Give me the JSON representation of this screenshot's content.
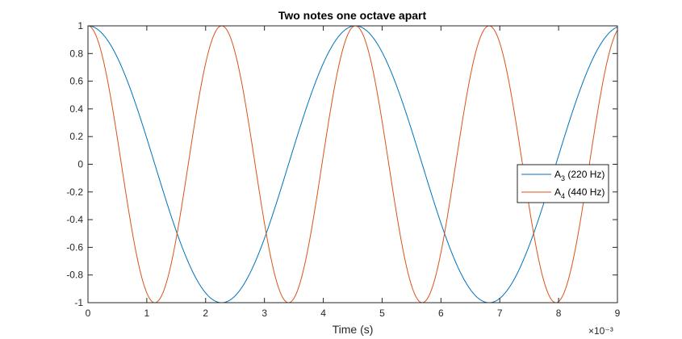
{
  "chart_data": {
    "type": "line",
    "title": "Two notes one octave apart",
    "xlabel": "Time (s)",
    "ylabel": "",
    "x_exponent_label": "×10⁻³",
    "xlim": [
      0,
      0.009
    ],
    "ylim": [
      -1,
      1
    ],
    "xticks": [
      0,
      1,
      2,
      3,
      4,
      5,
      6,
      7,
      8,
      9
    ],
    "xtick_labels": [
      "0",
      "1",
      "2",
      "3",
      "4",
      "5",
      "6",
      "7",
      "8",
      "9"
    ],
    "yticks": [
      1,
      0.8,
      0.6,
      0.4,
      0.2,
      0,
      -0.2,
      -0.4,
      -0.6,
      -0.8,
      -1
    ],
    "ytick_labels": [
      "1",
      "0.8",
      "0.6",
      "0.4",
      "0.2",
      "0",
      "-0.2",
      "-0.4",
      "-0.6",
      "-0.8",
      "-1"
    ],
    "grid": false,
    "legend_position": "right",
    "series": [
      {
        "name": "A3 (220 Hz)",
        "label_main": "A",
        "label_sub": "3",
        "label_rest": " (220 Hz)",
        "function": "cos(2*pi*220*t)",
        "frequency_hz": 220,
        "color": "#0072BD"
      },
      {
        "name": "A4 (440 Hz)",
        "label_main": "A",
        "label_sub": "4",
        "label_rest": " (440 Hz)",
        "function": "cos(2*pi*440*t)",
        "frequency_hz": 440,
        "color": "#D95319"
      }
    ]
  }
}
